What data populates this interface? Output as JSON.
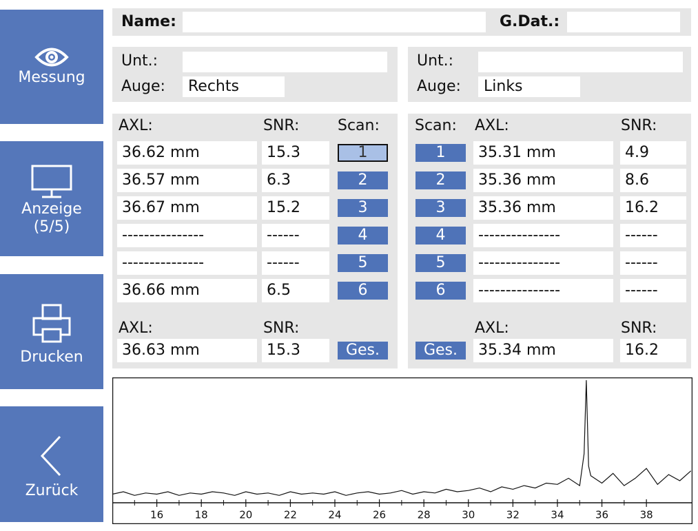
{
  "sidebar": {
    "measure": "Messung",
    "display": "Anzeige",
    "display_page": "(5/5)",
    "print": "Drucken",
    "back": "Zurück"
  },
  "header": {
    "name_label": "Name:",
    "birth_label": "G.Dat.:"
  },
  "left": {
    "exam_label": "Unt.:",
    "eye_label": "Auge:",
    "eye": "Rechts",
    "columns": [
      "AXL:",
      "SNR:",
      "Scan:"
    ],
    "rows": [
      [
        "36.62 mm",
        "15.3",
        "1"
      ],
      [
        "36.57 mm",
        "6.3",
        "2"
      ],
      [
        "36.67 mm",
        "15.2",
        "3"
      ],
      [
        "---------------",
        "------",
        "4"
      ],
      [
        "---------------",
        "------",
        "5"
      ],
      [
        "36.66 mm",
        "6.5",
        "6"
      ]
    ],
    "summary_labels": [
      "AXL:",
      "SNR:"
    ],
    "summary": [
      "36.63 mm",
      "15.3"
    ],
    "total_button": "Ges."
  },
  "right": {
    "exam_label": "Unt.:",
    "eye_label": "Auge:",
    "eye": "Links",
    "columns": [
      "Scan:",
      "AXL:",
      "SNR:"
    ],
    "rows": [
      [
        "1",
        "35.31 mm",
        "4.9"
      ],
      [
        "2",
        "35.36 mm",
        "8.6"
      ],
      [
        "3",
        "35.36 mm",
        "16.2"
      ],
      [
        "4",
        "---------------",
        "------"
      ],
      [
        "5",
        "---------------",
        "------"
      ],
      [
        "6",
        "---------------",
        "------"
      ]
    ],
    "summary_labels": [
      "AXL:",
      "SNR:"
    ],
    "summary": [
      "35.34 mm",
      "16.2"
    ],
    "total_button": "Ges."
  },
  "chart_data": {
    "type": "line",
    "xlim": [
      14,
      40.07
    ],
    "ylim": [
      0,
      100
    ],
    "xticks": [
      16,
      18,
      20,
      22,
      24,
      26,
      28,
      30,
      32,
      34,
      36,
      38
    ],
    "x": [
      14,
      14.5,
      15,
      15.5,
      16,
      16.5,
      17,
      17.5,
      18,
      18.5,
      19,
      19.5,
      20,
      20.5,
      21,
      21.5,
      22,
      22.5,
      23,
      23.5,
      24,
      24.5,
      25,
      25.5,
      26,
      26.5,
      27,
      27.5,
      28,
      28.5,
      29,
      29.5,
      30,
      30.5,
      31,
      31.5,
      32,
      32.5,
      33,
      33.5,
      34,
      34.5,
      35,
      35.2,
      35.3,
      35.4,
      35.5,
      36,
      36.5,
      37,
      37.5,
      38,
      38.5,
      39,
      39.5,
      40
    ],
    "values": [
      7,
      9,
      6,
      8,
      7,
      9,
      6,
      8,
      7,
      9,
      8,
      6,
      9,
      7,
      8,
      6,
      9,
      7,
      8,
      7,
      9,
      6,
      8,
      9,
      7,
      8,
      10,
      7,
      9,
      8,
      11,
      9,
      10,
      12,
      9,
      13,
      11,
      14,
      12,
      16,
      15,
      20,
      14,
      40,
      100,
      30,
      22,
      16,
      24,
      14,
      20,
      28,
      15,
      23,
      18,
      26
    ],
    "color": "#111111"
  }
}
